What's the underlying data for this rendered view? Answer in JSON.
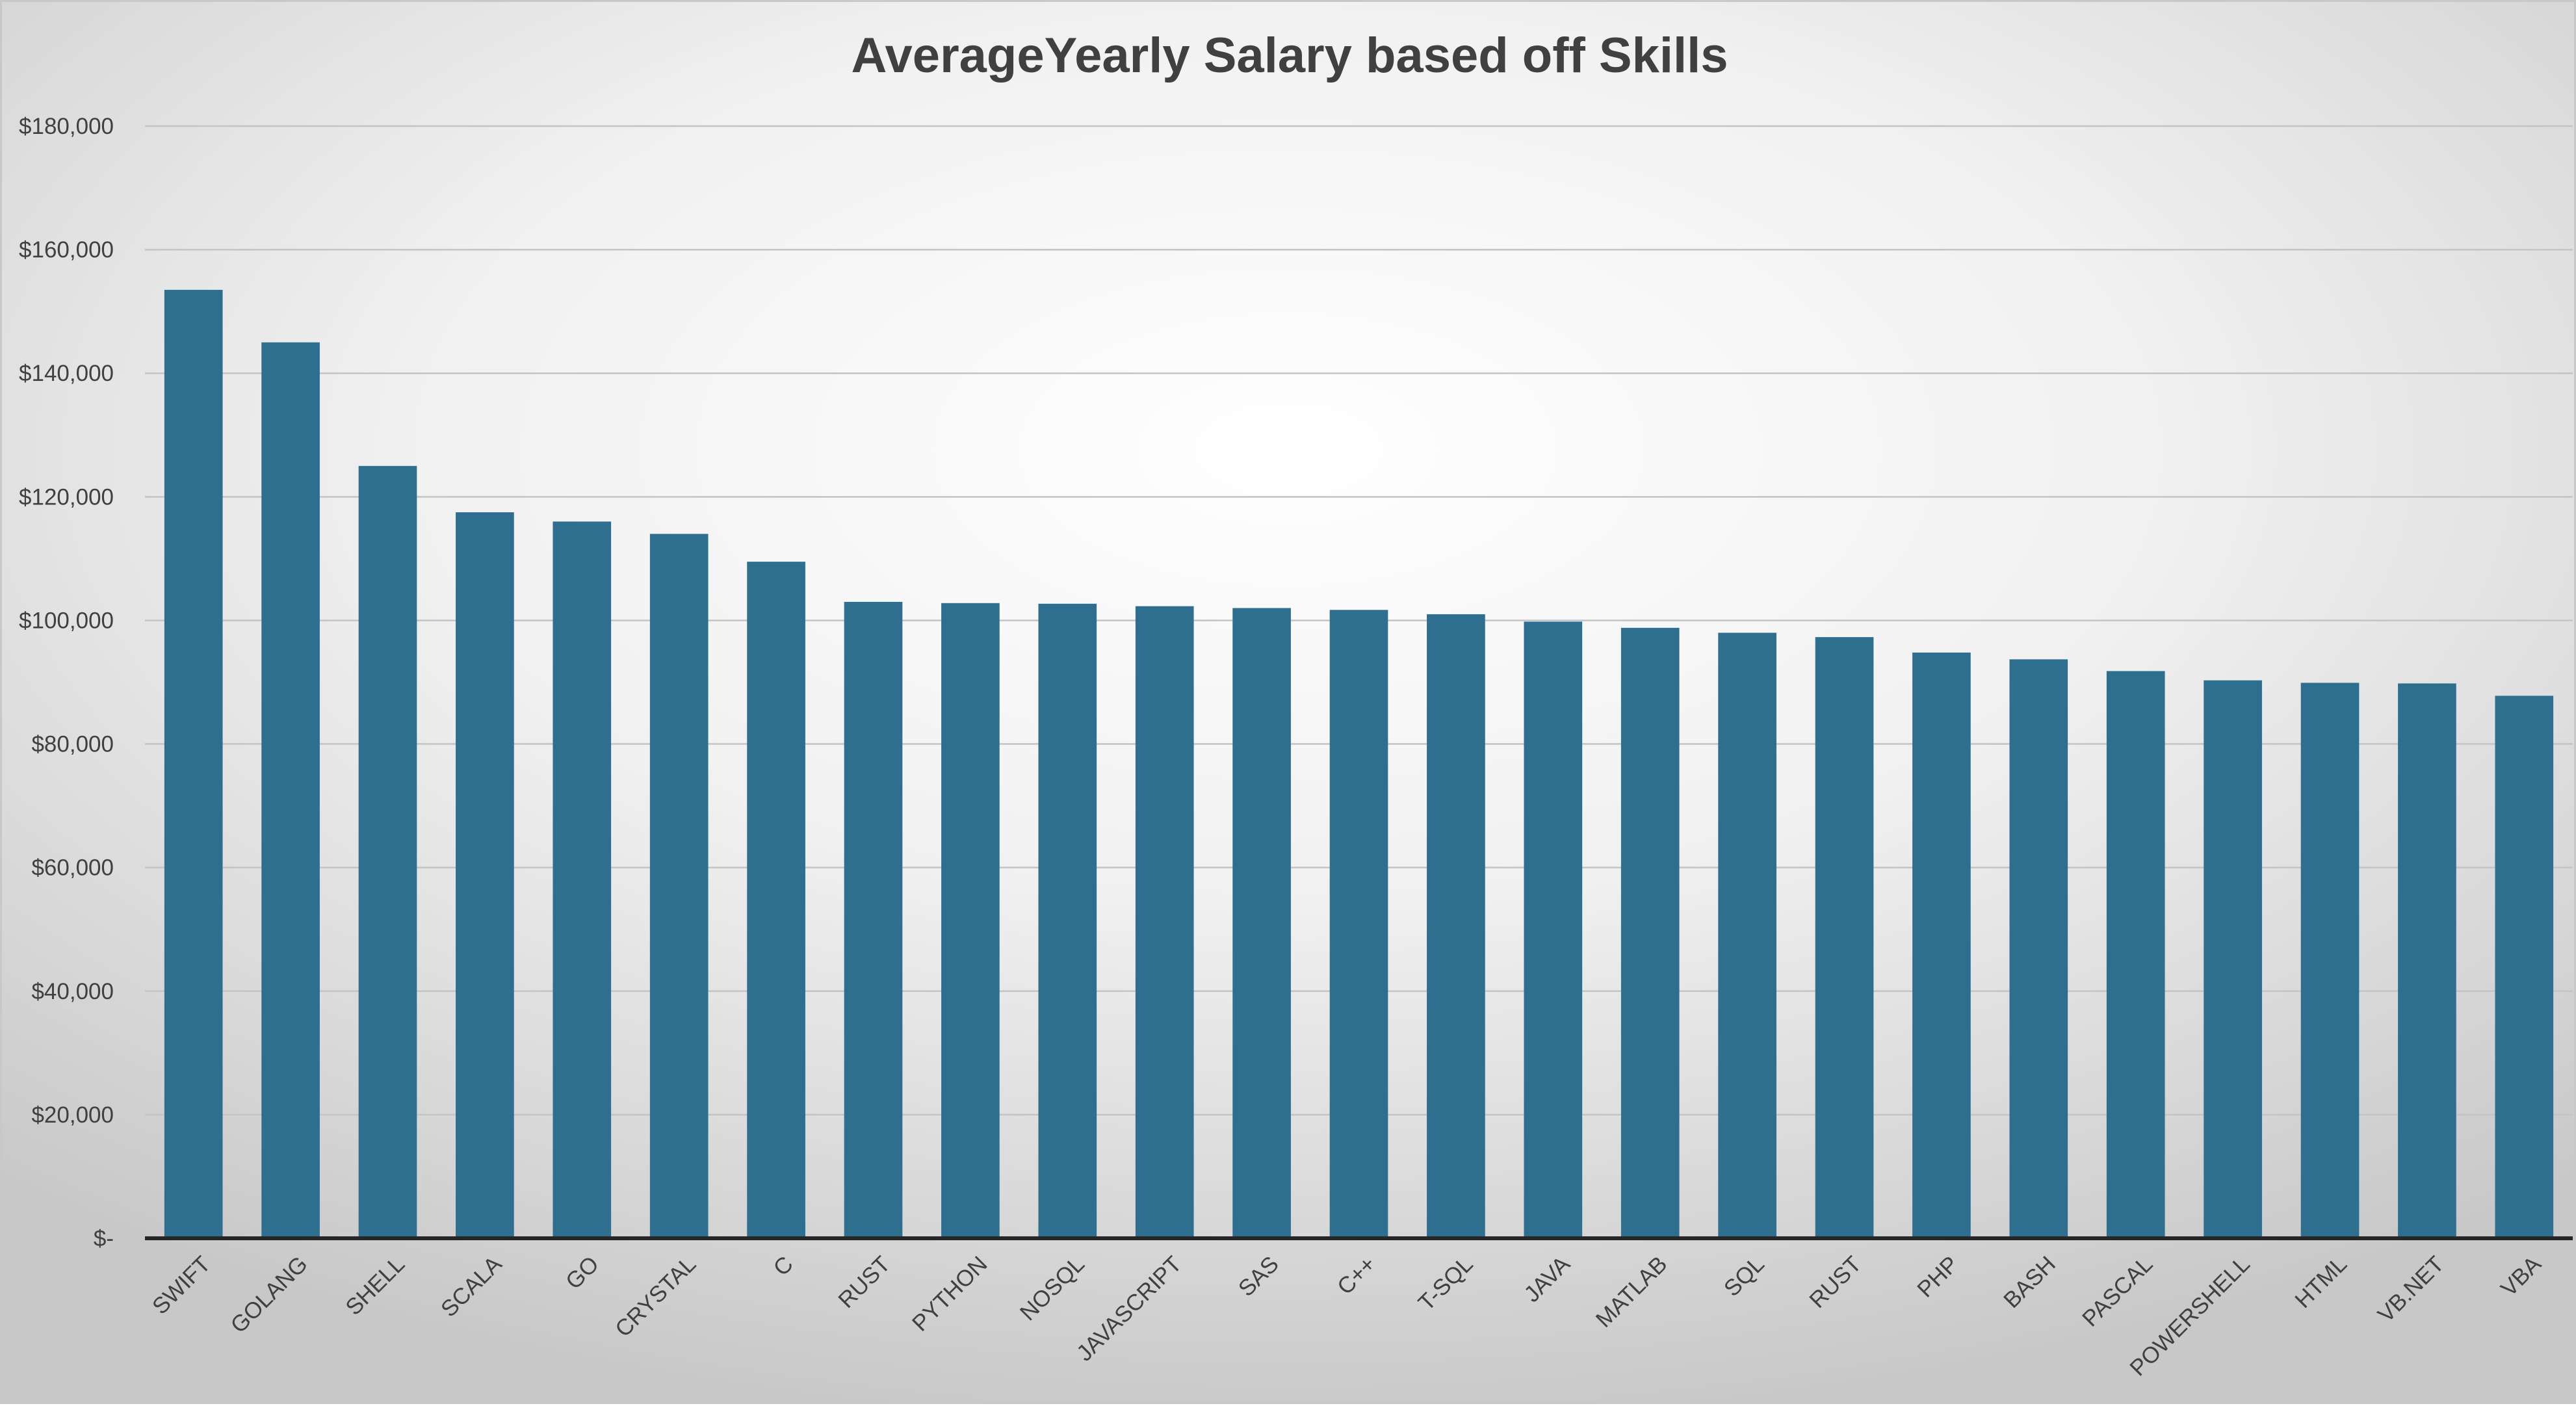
{
  "chart_data": {
    "type": "bar",
    "title": "AverageYearly Salary based off Skills",
    "xlabel": "",
    "ylabel": "",
    "categories": [
      "SWIFT",
      "GOLANG",
      "SHELL",
      "SCALA",
      "GO",
      "CRYSTAL",
      "C",
      "RUST",
      "PYTHON",
      "NOSQL",
      "JAVASCRIPT",
      "SAS",
      "C++",
      "T-SQL",
      "JAVA",
      "MATLAB",
      "SQL",
      "RUST",
      "PHP",
      "BASH",
      "PASCAL",
      "POWERSHELL",
      "HTML",
      "VB.NET",
      "VBA"
    ],
    "values": [
      153500,
      145000,
      125000,
      117500,
      116000,
      114000,
      109500,
      103000,
      102800,
      102700,
      102300,
      102000,
      101700,
      101000,
      99800,
      98800,
      98000,
      97300,
      94800,
      93700,
      91800,
      90300,
      89900,
      89800,
      87800
    ],
    "ylim": [
      0,
      180000
    ],
    "yticks": [
      0,
      20000,
      40000,
      60000,
      80000,
      100000,
      120000,
      140000,
      160000,
      180000
    ],
    "ytick_labels": [
      "$-",
      "$20,000",
      "$40,000",
      "$60,000",
      "$80,000",
      "$100,000",
      "$120,000",
      "$140,000",
      "$160,000",
      "$180,000"
    ],
    "grid": true,
    "legend": "none",
    "colors": {
      "bar": "#2e6e8e",
      "grid": "#c4c4c4",
      "axis": "#262626",
      "text": "#404040"
    }
  }
}
